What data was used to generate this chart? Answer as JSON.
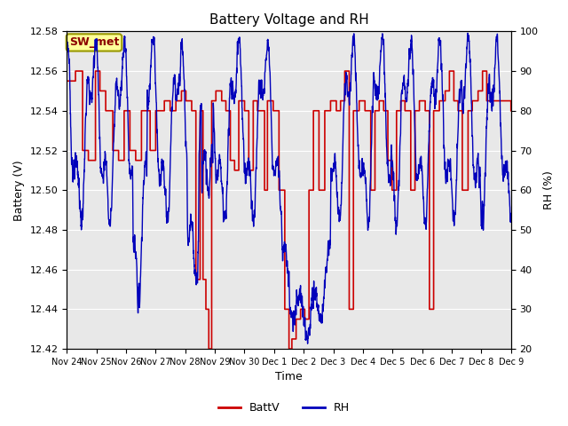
{
  "title": "Battery Voltage and RH",
  "xlabel": "Time",
  "ylabel_left": "Battery (V)",
  "ylabel_right": "RH (%)",
  "annotation": "SW_met",
  "ylim_left": [
    12.42,
    12.58
  ],
  "ylim_right": [
    20,
    100
  ],
  "yticks_left": [
    12.42,
    12.44,
    12.46,
    12.48,
    12.5,
    12.52,
    12.54,
    12.56,
    12.58
  ],
  "yticks_right": [
    20,
    30,
    40,
    50,
    60,
    70,
    80,
    90,
    100
  ],
  "xtick_labels": [
    "Nov 24",
    "Nov 25",
    "Nov 26",
    "Nov 27",
    "Nov 28",
    "Nov 29",
    "Nov 30",
    "Dec 1",
    "Dec 2",
    "Dec 3",
    "Dec 4",
    "Dec 5",
    "Dec 6",
    "Dec 7",
    "Dec 8",
    "Dec 9"
  ],
  "n_days": 15.5,
  "bg_color": "#e8e8e8",
  "fig_color": "#ffffff",
  "batt_color": "#cc0000",
  "rh_color": "#0000bb",
  "legend_labels": [
    "BattV",
    "RH"
  ],
  "title_fontsize": 11,
  "label_fontsize": 9,
  "tick_fontsize": 8,
  "annotation_fontsize": 9
}
